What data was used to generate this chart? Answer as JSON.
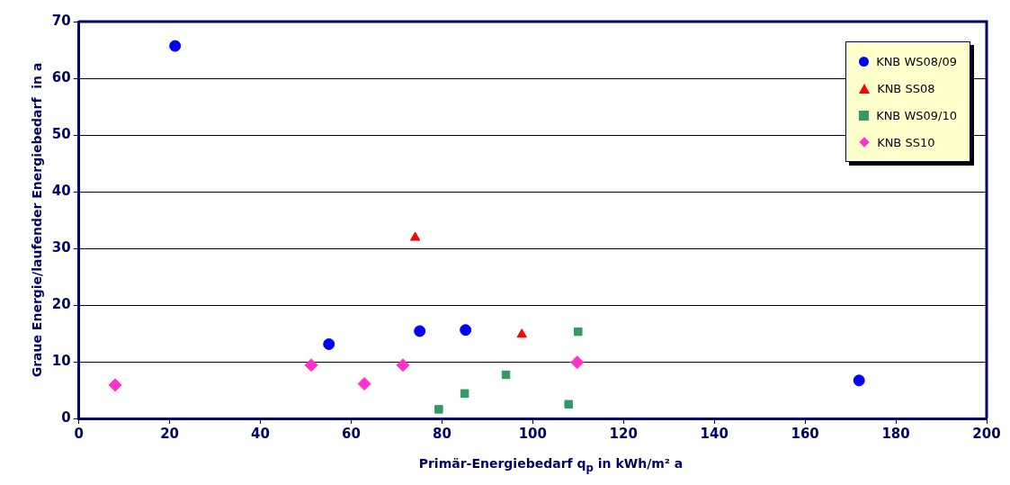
{
  "chart_data": {
    "type": "scatter",
    "xlabel": "Primär-Energiebedarf q$_{p}$  in kWh/m² a",
    "ylabel": "Graue Energie/laufender Energiebedarf  in a",
    "xlim": [
      0,
      200
    ],
    "xticks": [
      0,
      20,
      40,
      60,
      80,
      100,
      120,
      140,
      160,
      180,
      200
    ],
    "ylim": [
      0,
      70
    ],
    "yticks": [
      0,
      10,
      20,
      30,
      40,
      50,
      60,
      70
    ],
    "grid": "y",
    "legend": "top right",
    "series": [
      {
        "name": "KNB WS08/09",
        "color": "#0000ff",
        "marker": "circle",
        "x": [
          21.2,
          55.1,
          75.1,
          85.2,
          171.9
        ],
        "values": [
          65.7,
          13.1,
          15.4,
          15.6,
          6.7
        ]
      },
      {
        "name": "KNB SS08",
        "color": "#ff0000",
        "marker": "triangle",
        "x": [
          74.1,
          97.6
        ],
        "values": [
          31.9,
          14.8
        ]
      },
      {
        "name": "KNB WS09/10",
        "color": "#339966",
        "marker": "square",
        "x": [
          110,
          94.1,
          85.0,
          79.3,
          107.9
        ],
        "values": [
          15.3,
          7.7,
          4.4,
          1.6,
          2.5
        ]
      },
      {
        "name": "KNB SS10",
        "color": "#ff33cc",
        "marker": "diamond",
        "x": [
          8.0,
          51.2,
          62.9,
          71.4,
          109.8
        ],
        "values": [
          5.9,
          9.4,
          6.1,
          9.4,
          9.9
        ]
      }
    ]
  }
}
